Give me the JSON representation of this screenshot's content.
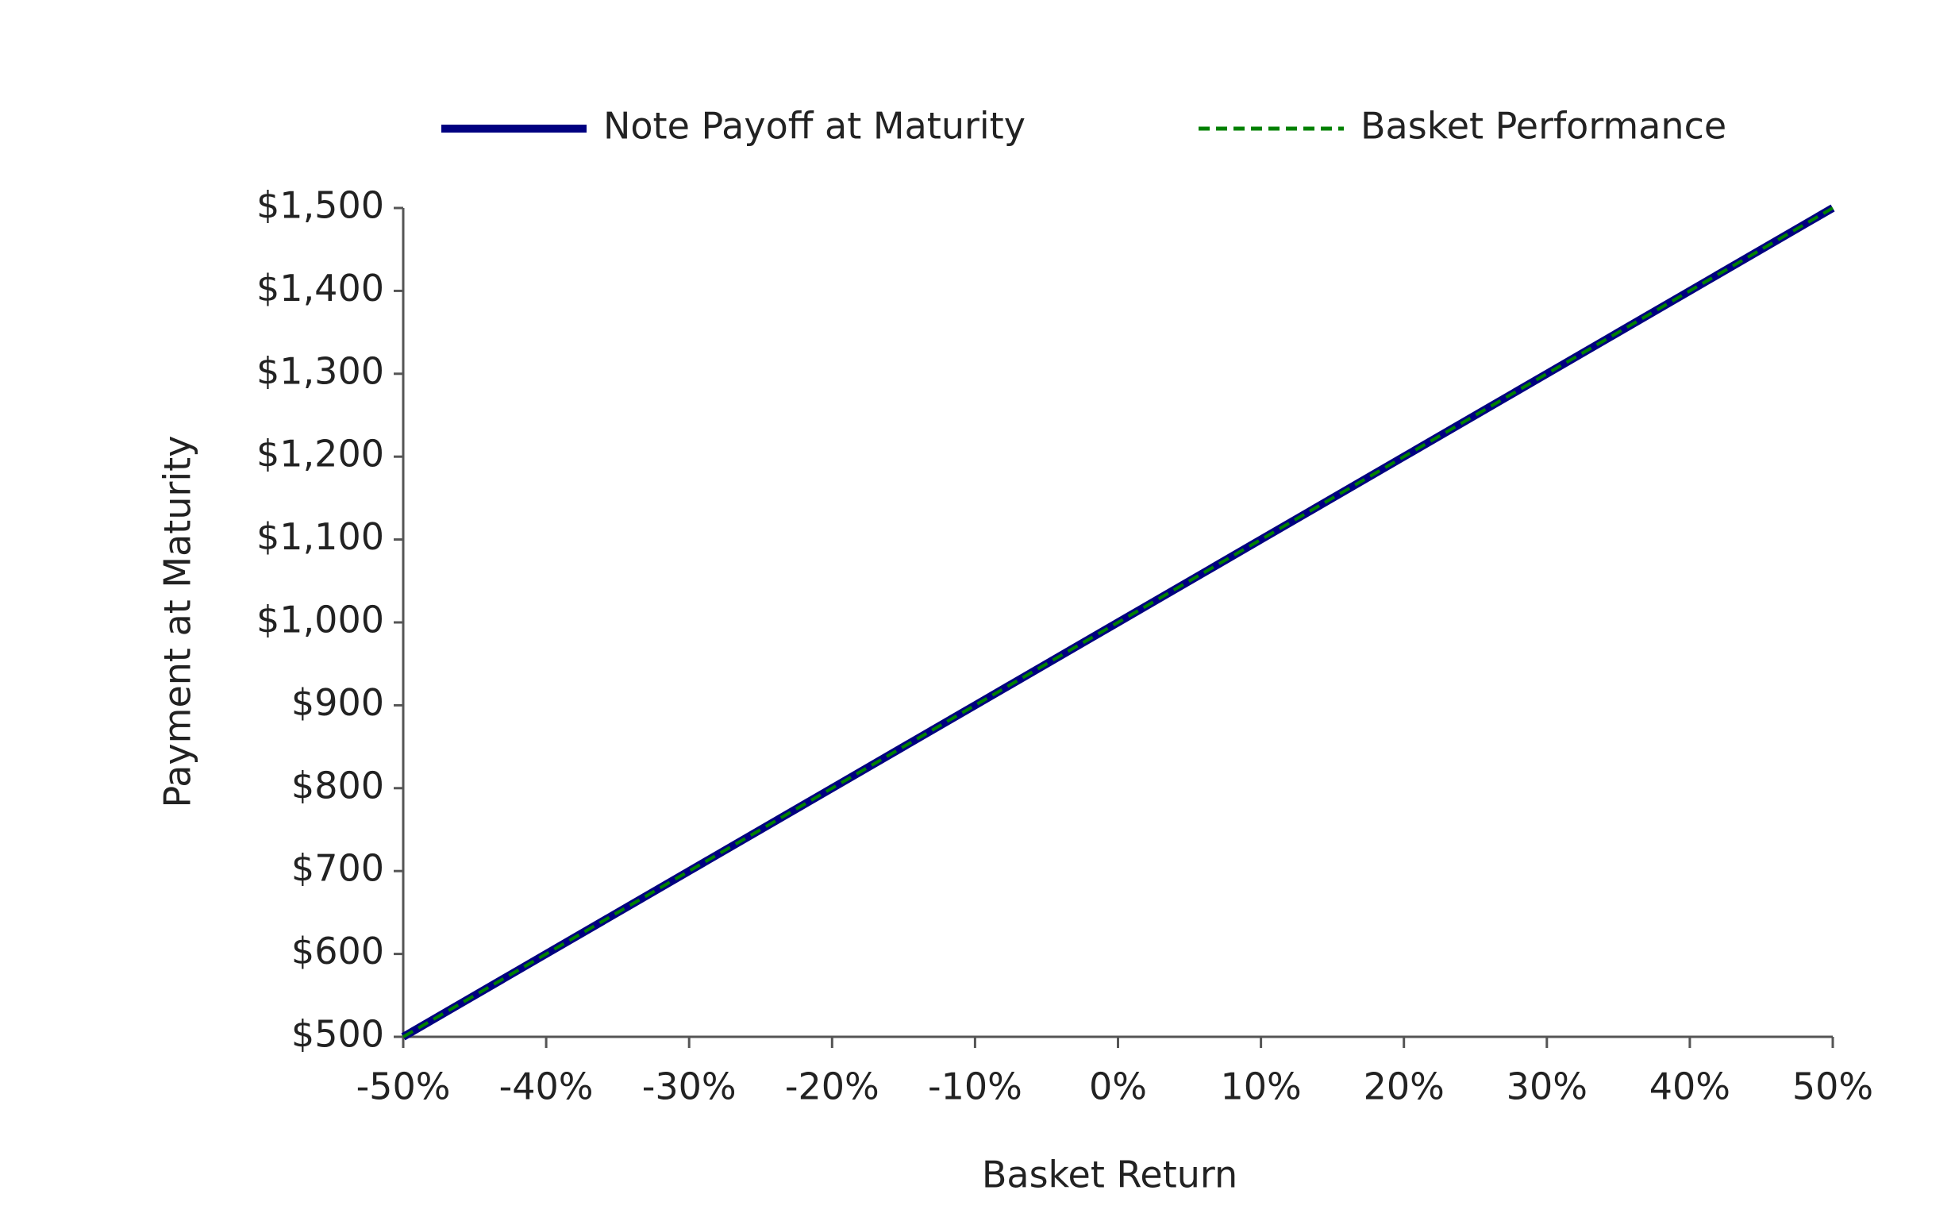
{
  "chart_data": {
    "type": "line",
    "x_label": "Basket Return",
    "y_label": "Payment at Maturity",
    "x": [
      -50,
      -40,
      -30,
      -20,
      -10,
      0,
      10,
      20,
      30,
      40,
      50
    ],
    "series": [
      {
        "name": "Note Payoff at Maturity",
        "color": "#000080",
        "style": "solid",
        "values": [
          500,
          600,
          700,
          800,
          900,
          1000,
          1100,
          1200,
          1300,
          1400,
          1500
        ]
      },
      {
        "name": "Basket Performance",
        "color": "#008000",
        "style": "dashed",
        "values": [
          500,
          600,
          700,
          800,
          900,
          1000,
          1100,
          1200,
          1300,
          1400,
          1500
        ]
      }
    ],
    "xlim": [
      -50,
      50
    ],
    "ylim": [
      500,
      1500
    ],
    "xticks": [
      {
        "value": -50,
        "label": "-50%"
      },
      {
        "value": -40,
        "label": "-40%"
      },
      {
        "value": -30,
        "label": "-30%"
      },
      {
        "value": -20,
        "label": "-20%"
      },
      {
        "value": -10,
        "label": "-10%"
      },
      {
        "value": 0,
        "label": "0%"
      },
      {
        "value": 10,
        "label": "10%"
      },
      {
        "value": 20,
        "label": "20%"
      },
      {
        "value": 30,
        "label": "30%"
      },
      {
        "value": 40,
        "label": "40%"
      },
      {
        "value": 50,
        "label": "50%"
      }
    ],
    "yticks": [
      {
        "value": 500,
        "label": "$500"
      },
      {
        "value": 600,
        "label": "$600"
      },
      {
        "value": 700,
        "label": "$700"
      },
      {
        "value": 800,
        "label": "$800"
      },
      {
        "value": 900,
        "label": "$900"
      },
      {
        "value": 1000,
        "label": "$1,000"
      },
      {
        "value": 1100,
        "label": "$1,100"
      },
      {
        "value": 1200,
        "label": "$1,200"
      },
      {
        "value": 1300,
        "label": "$1,300"
      },
      {
        "value": 1400,
        "label": "$1,400"
      },
      {
        "value": 1500,
        "label": "$1,500"
      }
    ],
    "grid": false,
    "legend": "top"
  }
}
